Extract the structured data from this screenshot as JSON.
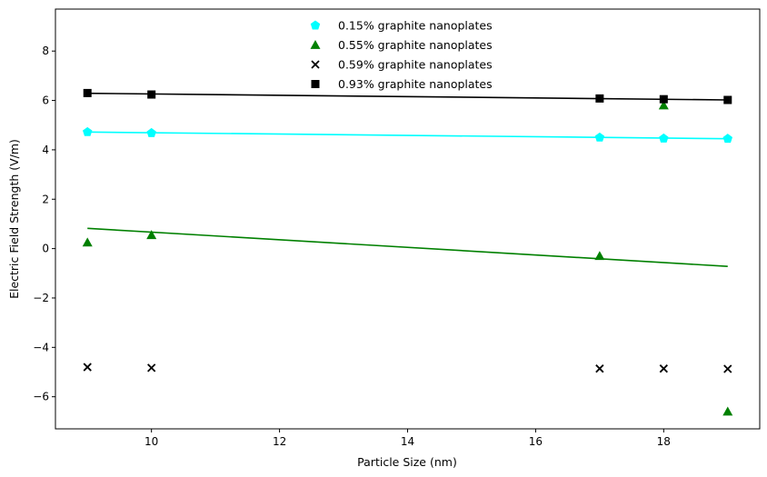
{
  "chart_data": {
    "type": "scatter",
    "xlabel": "Particle Size (nm)",
    "ylabel": "Electric Field Strength (V/m)",
    "xlim": [
      8.5,
      19.5
    ],
    "ylim": [
      -7.3,
      9.7
    ],
    "xticks": [
      10,
      12,
      14,
      16,
      18
    ],
    "yticks": [
      -6,
      -4,
      -2,
      0,
      2,
      4,
      6,
      8
    ],
    "grid": false,
    "legend_position": "top-center",
    "series": [
      {
        "name": "0.15% graphite nanoplates",
        "color": "#00ffff",
        "marker": "pentagon",
        "x": [
          9,
          10,
          17,
          18,
          19
        ],
        "y": [
          4.72,
          4.68,
          4.5,
          4.46,
          4.45
        ],
        "trend": {
          "x": [
            9,
            19
          ],
          "y": [
            4.72,
            4.45
          ]
        }
      },
      {
        "name": "0.55% graphite nanoplates",
        "color": "#008000",
        "marker": "triangle",
        "x": [
          9,
          10,
          17,
          18,
          19
        ],
        "y": [
          0.25,
          0.55,
          -0.3,
          5.8,
          -6.6
        ],
        "trend": {
          "x": [
            9,
            19
          ],
          "y": [
            0.82,
            -0.72
          ]
        }
      },
      {
        "name": "0.59% graphite nanoplates",
        "color": "#000000",
        "marker": "x",
        "x": [
          9,
          10,
          17,
          18,
          19
        ],
        "y": [
          -4.8,
          -4.83,
          -4.86,
          -4.86,
          -4.87
        ],
        "trend": null
      },
      {
        "name": "0.93% graphite nanoplates",
        "color": "#000000",
        "marker": "square",
        "x": [
          9,
          10,
          17,
          18,
          19
        ],
        "y": [
          6.3,
          6.24,
          6.08,
          6.05,
          6.02
        ],
        "trend": {
          "x": [
            9,
            19
          ],
          "y": [
            6.29,
            6.02
          ]
        }
      }
    ]
  }
}
